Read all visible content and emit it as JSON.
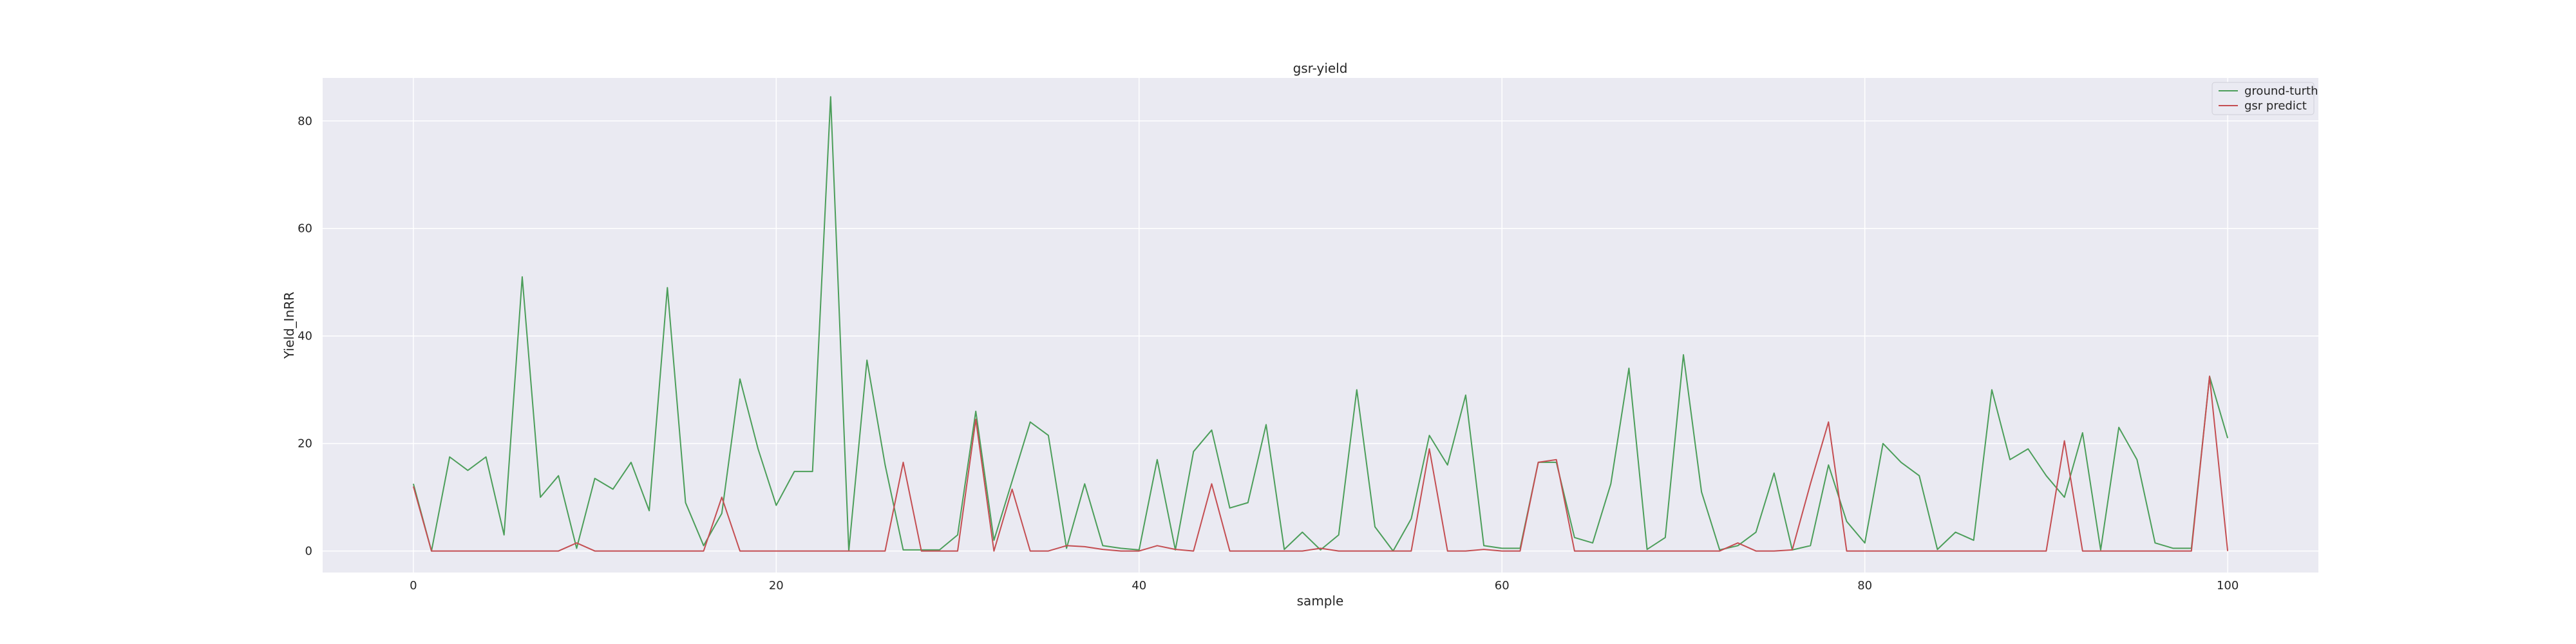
{
  "chart_data": {
    "type": "line",
    "title": "gsr-yield",
    "xlabel": "sample",
    "ylabel": "Yield_InRR",
    "xlim": [
      -5,
      105
    ],
    "ylim": [
      -4,
      88
    ],
    "xticks": [
      0,
      20,
      40,
      60,
      80,
      100
    ],
    "yticks": [
      0,
      20,
      40,
      60,
      80
    ],
    "grid": true,
    "legend_position": "top-right",
    "x": [
      0,
      1,
      2,
      3,
      4,
      5,
      6,
      7,
      8,
      9,
      10,
      11,
      12,
      13,
      14,
      15,
      16,
      17,
      18,
      19,
      20,
      21,
      22,
      23,
      24,
      25,
      26,
      27,
      28,
      29,
      30,
      31,
      32,
      33,
      34,
      35,
      36,
      37,
      38,
      39,
      40,
      41,
      42,
      43,
      44,
      45,
      46,
      47,
      48,
      49,
      50,
      51,
      52,
      53,
      54,
      55,
      56,
      57,
      58,
      59,
      60,
      61,
      62,
      63,
      64,
      65,
      66,
      67,
      68,
      69,
      70,
      71,
      72,
      73,
      74,
      75,
      76,
      77,
      78,
      79,
      80,
      81,
      82,
      83,
      84,
      85,
      86,
      87,
      88,
      89,
      90,
      91,
      92,
      93,
      94,
      95,
      96,
      97,
      98,
      99,
      100
    ],
    "series": [
      {
        "name": "ground-turth",
        "color": "#4c9e5a",
        "values": [
          12.5,
          0,
          17.5,
          15,
          17.5,
          3,
          51,
          10,
          14,
          0.5,
          13.5,
          11.5,
          16.5,
          7.5,
          49,
          9,
          1,
          7,
          32,
          19,
          8.5,
          14.8,
          14.8,
          84.5,
          0,
          35.5,
          16,
          0.2,
          0.2,
          0.2,
          3,
          26,
          2,
          13,
          24,
          21.5,
          0.5,
          12.5,
          1,
          0.5,
          0.2,
          17,
          0.2,
          18.5,
          22.5,
          8,
          9,
          23.5,
          0.3,
          3.5,
          0.2,
          3,
          30,
          4.5,
          0,
          6,
          21.5,
          16,
          29,
          1,
          0.5,
          0.5,
          16.5,
          16.5,
          2.5,
          1.5,
          12.5,
          34,
          0.3,
          2.5,
          36.5,
          11,
          0.2,
          1,
          3.5,
          14.5,
          0.2,
          1,
          16,
          5.5,
          1.5,
          20,
          16.5,
          14,
          0.3,
          3.5,
          2,
          30,
          17,
          19,
          14,
          10,
          22,
          0.2,
          23,
          17,
          1.5,
          0.5,
          0.5,
          32.5,
          21
        ]
      },
      {
        "name": "gsr predict",
        "color": "#c44e52",
        "values": [
          12,
          0,
          0,
          0,
          0,
          0,
          0,
          0,
          0,
          1.5,
          0,
          0,
          0,
          0,
          0,
          0,
          0,
          10,
          0,
          0,
          0,
          0,
          0,
          0,
          0,
          0,
          0,
          16.5,
          0,
          0,
          0,
          24.5,
          0,
          11.5,
          0,
          0,
          1,
          0.8,
          0.3,
          0,
          0,
          1,
          0.3,
          0,
          12.5,
          0,
          0,
          0,
          0,
          0,
          0.5,
          0,
          0,
          0,
          0,
          0,
          19,
          0,
          0,
          0.3,
          0,
          0,
          16.5,
          17,
          0,
          0,
          0,
          0,
          0,
          0,
          0,
          0,
          0,
          1.5,
          0,
          0,
          0.2,
          12.5,
          24,
          0,
          0,
          0,
          0,
          0,
          0,
          0,
          0,
          0,
          0,
          0,
          0,
          20.5,
          0,
          0,
          0,
          0,
          0,
          0,
          0,
          32.5,
          0
        ]
      }
    ]
  }
}
